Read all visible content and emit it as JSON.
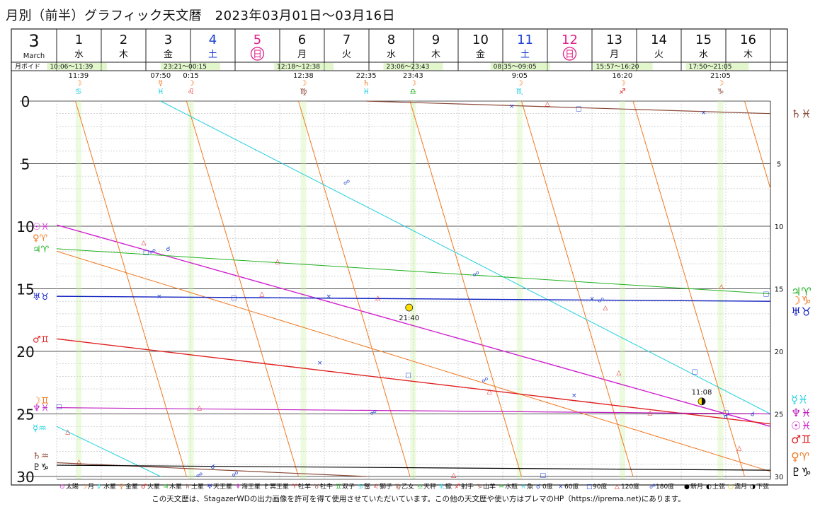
{
  "page_title": "月別（前半）グラフィック天文暦　2023年03月01日〜03月16日",
  "footer_note": "この天文歴は、StagazerWDの出力画像を許可を得て使用させていただいています。この他の天文歴や使い方はプレマのHP（https://iprema.net)にあります。",
  "colors": {
    "sun": "#d020d0",
    "moon": "#f07820",
    "mercury": "#20d0e0",
    "venus": "#f07820",
    "mars": "#e02020",
    "jupiter": "#20b020",
    "saturn": "#8b4a3a",
    "uranus": "#1020c0",
    "neptune": "#c020c0",
    "pluto": "#000000",
    "aspect": "#1a3fd0",
    "grid": "#999999",
    "void_fill": "#c8f0a0",
    "holiday": "#e0208a",
    "sat_blue": "#1a3fd0"
  },
  "header": {
    "month_number": "3",
    "month_name": "March",
    "days": [
      {
        "day": "1",
        "weekday": "水",
        "holiday": false,
        "saturday": false
      },
      {
        "day": "2",
        "weekday": "木",
        "holiday": false,
        "saturday": false
      },
      {
        "day": "3",
        "weekday": "金",
        "holiday": false,
        "saturday": false
      },
      {
        "day": "4",
        "weekday": "土",
        "holiday": false,
        "saturday": true
      },
      {
        "day": "5",
        "weekday": "日",
        "holiday": true,
        "saturday": false
      },
      {
        "day": "6",
        "weekday": "月",
        "holiday": false,
        "saturday": false
      },
      {
        "day": "7",
        "weekday": "火",
        "holiday": false,
        "saturday": false
      },
      {
        "day": "8",
        "weekday": "水",
        "holiday": false,
        "saturday": false
      },
      {
        "day": "9",
        "weekday": "木",
        "holiday": false,
        "saturday": false
      },
      {
        "day": "10",
        "weekday": "金",
        "holiday": false,
        "saturday": false
      },
      {
        "day": "11",
        "weekday": "土",
        "holiday": false,
        "saturday": true
      },
      {
        "day": "12",
        "weekday": "日",
        "holiday": true,
        "saturday": false
      },
      {
        "day": "13",
        "weekday": "月",
        "holiday": false,
        "saturday": false
      },
      {
        "day": "14",
        "weekday": "火",
        "holiday": false,
        "saturday": false
      },
      {
        "day": "15",
        "weekday": "水",
        "holiday": false,
        "saturday": false
      },
      {
        "day": "16",
        "weekday": "木",
        "holiday": false,
        "saturday": false
      }
    ],
    "void_label": "月ボイド",
    "void_periods": [
      {
        "text": "10:06〜11:39",
        "start_day": 1.42,
        "end_day": 1.49
      },
      {
        "text": "23:21〜00:15",
        "start_day": 3.97,
        "end_day": 4.01
      },
      {
        "text": "12:18〜12:38",
        "start_day": 6.51,
        "end_day": 6.53
      },
      {
        "text": "23:06〜23:43",
        "start_day": 8.96,
        "end_day": 8.99
      },
      {
        "text": "08:35〜09:05",
        "start_day": 11.36,
        "end_day": 11.38
      },
      {
        "text": "15:57〜16:20",
        "start_day": 13.66,
        "end_day": 13.68
      },
      {
        "text": "17:50〜21:05",
        "start_day": 15.74,
        "end_day": 15.88
      }
    ]
  },
  "ingresses": [
    {
      "time": "11:39",
      "planet": "☽",
      "sign": "♋",
      "day_pos": 1.49,
      "color": "#20d0e0"
    },
    {
      "time": "07:50",
      "planet": "☿",
      "sign": "♓",
      "day_pos": 3.33,
      "color": "#20d0e0"
    },
    {
      "time": "0:15",
      "planet": "☽",
      "sign": "♌",
      "day_pos": 4.01,
      "color": "#e02020"
    },
    {
      "time": "12:38",
      "planet": "☽",
      "sign": "♍",
      "day_pos": 6.53,
      "color": "#8b4a3a"
    },
    {
      "time": "22:35",
      "planet": "♄",
      "sign": "♓",
      "day_pos": 7.94,
      "color": "#20d0e0"
    },
    {
      "time": "23:43",
      "planet": "☽",
      "sign": "♎",
      "day_pos": 8.99,
      "color": "#20b020"
    },
    {
      "time": "9:05",
      "planet": "☽",
      "sign": "♏",
      "day_pos": 11.38,
      "color": "#20d0e0"
    },
    {
      "time": "16:20",
      "planet": "☽",
      "sign": "♐",
      "day_pos": 13.68,
      "color": "#e02020"
    },
    {
      "time": "21:05",
      "planet": "☽",
      "sign": "♑",
      "day_pos": 15.88,
      "color": "#8b4a3a"
    }
  ],
  "chart_data": {
    "type": "line",
    "title": "",
    "xlabel": "",
    "ylabel": "",
    "x_range_days": [
      1,
      17
    ],
    "ylim": [
      0,
      30
    ],
    "y_ticks_left": [
      0,
      5,
      10,
      15,
      20,
      25,
      30
    ],
    "y_ticks_right": [
      5,
      10,
      15,
      20,
      25,
      30
    ],
    "grid": true,
    "series": [
      {
        "name": "☉",
        "color": "#d020d0",
        "width": 1.4,
        "segments": [
          [
            [
              1,
              9.9
            ],
            [
              17,
              26.0
            ]
          ]
        ]
      },
      {
        "name": "☽",
        "color": "#f07820",
        "width": 1.0,
        "segments": [
          [
            [
              1.42,
              0
            ],
            [
              3.91,
              30
            ]
          ],
          [
            [
              3.91,
              0
            ],
            [
              6.42,
              30
            ]
          ],
          [
            [
              6.42,
              0
            ],
            [
              8.92,
              30
            ]
          ],
          [
            [
              8.92,
              0
            ],
            [
              11.42,
              30
            ]
          ],
          [
            [
              11.42,
              0
            ],
            [
              13.92,
              30
            ]
          ],
          [
            [
              13.92,
              0
            ],
            [
              16.42,
              30
            ]
          ],
          [
            [
              16.42,
              0
            ],
            [
              17,
              7
            ]
          ]
        ]
      },
      {
        "name": "☿",
        "color": "#20d0e0",
        "width": 1.0,
        "segments": [
          [
            [
              1,
              26.0
            ],
            [
              3.33,
              30
            ]
          ],
          [
            [
              3.33,
              0
            ],
            [
              17,
              25.0
            ]
          ]
        ]
      },
      {
        "name": "♀",
        "color": "#f07820",
        "width": 1.0,
        "segments": [
          [
            [
              1,
              12.0
            ],
            [
              17,
              29.6
            ]
          ]
        ]
      },
      {
        "name": "♂",
        "color": "#e02020",
        "width": 1.4,
        "segments": [
          [
            [
              1,
              19.0
            ],
            [
              17,
              25.8
            ]
          ]
        ]
      },
      {
        "name": "♃",
        "color": "#20b020",
        "width": 1.0,
        "segments": [
          [
            [
              1,
              11.8
            ],
            [
              17,
              15.4
            ]
          ]
        ]
      },
      {
        "name": "♄",
        "color": "#8b4a3a",
        "width": 1.2,
        "segments": [
          [
            [
              1,
              28.9
            ],
            [
              7.94,
              30
            ]
          ],
          [
            [
              7.94,
              0
            ],
            [
              17,
              1.0
            ]
          ]
        ]
      },
      {
        "name": "♅",
        "color": "#1020c0",
        "width": 1.4,
        "segments": [
          [
            [
              1,
              15.6
            ],
            [
              17,
              16.0
            ]
          ]
        ]
      },
      {
        "name": "♆",
        "color": "#c020c0",
        "width": 1.2,
        "segments": [
          [
            [
              1,
              24.5
            ],
            [
              17,
              25.0
            ]
          ]
        ]
      },
      {
        "name": "♇",
        "color": "#000000",
        "width": 1.2,
        "segments": [
          [
            [
              1,
              29.1
            ],
            [
              17,
              29.5
            ]
          ]
        ]
      }
    ],
    "left_labels": [
      {
        "value": 10,
        "glyphs": "☉♓",
        "color": "#d020d0"
      },
      {
        "value": 10.9,
        "glyphs": "♀♈",
        "color": "#f07820"
      },
      {
        "value": 11.8,
        "glyphs": "♃♈",
        "color": "#20b020"
      },
      {
        "value": 15.6,
        "glyphs": "♅♉",
        "color": "#1020c0"
      },
      {
        "value": 19.0,
        "glyphs": "♂♊",
        "color": "#e02020"
      },
      {
        "value": 23.9,
        "glyphs": "☽♊",
        "color": "#f07820"
      },
      {
        "value": 24.5,
        "glyphs": "♆♓",
        "color": "#c020c0"
      },
      {
        "value": 26.1,
        "glyphs": "☿♒",
        "color": "#20d0e0"
      },
      {
        "value": 28.3,
        "glyphs": "♄♒",
        "color": "#8b4a3a"
      },
      {
        "value": 29.2,
        "glyphs": "♇♑",
        "color": "#000000"
      }
    ],
    "right_labels": [
      {
        "value": 1.0,
        "glyphs": "♄♓",
        "color": "#8b4a3a"
      },
      {
        "value": 15.2,
        "glyphs": "♃♈",
        "color": "#20b020"
      },
      {
        "value": 15.9,
        "glyphs": "☽♑",
        "color": "#f07820"
      },
      {
        "value": 16.8,
        "glyphs": "♅♉",
        "color": "#1020c0"
      },
      {
        "value": 23.8,
        "glyphs": "☿♓",
        "color": "#20d0e0"
      },
      {
        "value": 24.9,
        "glyphs": "♆♓",
        "color": "#c020c0"
      },
      {
        "value": 25.9,
        "glyphs": "☉♓",
        "color": "#d020d0"
      },
      {
        "value": 27.0,
        "glyphs": "♂♊",
        "color": "#e02020"
      },
      {
        "value": 28.4,
        "glyphs": "♀♈",
        "color": "#f07820"
      },
      {
        "value": 29.6,
        "glyphs": "♇♑",
        "color": "#000000"
      }
    ],
    "aspects": [
      {
        "sym": "□",
        "day": 4.97,
        "value": 15.7
      },
      {
        "sym": "□",
        "day": 8.88,
        "value": 21.9
      },
      {
        "sym": "□",
        "day": 3.0,
        "value": 12.1
      },
      {
        "sym": "□",
        "day": 12.7,
        "value": 0.6
      },
      {
        "sym": "□",
        "day": 11.9,
        "value": 29.9
      },
      {
        "sym": "□",
        "day": 1.05,
        "value": 24.4
      },
      {
        "sym": "□",
        "day": 15.3,
        "value": 21.6
      },
      {
        "sym": "□",
        "day": 16.0,
        "value": 24.9
      },
      {
        "sym": "□",
        "day": 16.9,
        "value": 15.4
      },
      {
        "sym": "×",
        "day": 11.2,
        "value": 0.4
      },
      {
        "sym": "×",
        "day": 15.5,
        "value": 0.9
      },
      {
        "sym": "×",
        "day": 3.3,
        "value": 15.6
      },
      {
        "sym": "×",
        "day": 7.1,
        "value": 15.6
      },
      {
        "sym": "×",
        "day": 6.9,
        "value": 20.9
      },
      {
        "sym": "×",
        "day": 13.0,
        "value": 15.8
      },
      {
        "sym": "×",
        "day": 12.6,
        "value": 23.5
      },
      {
        "sym": "△",
        "day": 2.95,
        "value": 11.3
      },
      {
        "sym": "△",
        "day": 4.2,
        "value": 24.5
      },
      {
        "sym": "△",
        "day": 5.95,
        "value": 12.8
      },
      {
        "sym": "△",
        "day": 5.6,
        "value": 15.4
      },
      {
        "sym": "△",
        "day": 8.2,
        "value": 15.7
      },
      {
        "sym": "△",
        "day": 10.7,
        "value": 23.2
      },
      {
        "sym": "△",
        "day": 13.3,
        "value": 16.5
      },
      {
        "sym": "△",
        "day": 13.6,
        "value": 21.7
      },
      {
        "sym": "△",
        "day": 14.3,
        "value": 24.9
      },
      {
        "sym": "△",
        "day": 15.9,
        "value": 14.8
      },
      {
        "sym": "△",
        "day": 16.3,
        "value": 27.7
      },
      {
        "sym": "△",
        "day": 12.0,
        "value": 0.2
      },
      {
        "sym": "△",
        "day": 9.9,
        "value": 29.9
      },
      {
        "sym": "△",
        "day": 1.25,
        "value": 26.4
      },
      {
        "sym": "△",
        "day": 1.5,
        "value": 28.8
      },
      {
        "sym": "☍",
        "day": 3.15,
        "value": 12.0
      },
      {
        "sym": "☍",
        "day": 7.5,
        "value": 6.5
      },
      {
        "sym": "☍",
        "day": 5.0,
        "value": 29.8
      },
      {
        "sym": "☍",
        "day": 8.1,
        "value": 24.9
      },
      {
        "sym": "☍",
        "day": 10.6,
        "value": 22.3
      },
      {
        "sym": "☍",
        "day": 10.4,
        "value": 13.8
      },
      {
        "sym": "☍",
        "day": 13.2,
        "value": 15.9
      },
      {
        "sym": "☍",
        "day": 4.2,
        "value": 29.9
      },
      {
        "sym": "☌",
        "day": 4.5,
        "value": 29.2
      },
      {
        "sym": "☌",
        "day": 16.6,
        "value": 25.0
      },
      {
        "sym": "☌",
        "day": 3.5,
        "value": 11.8
      },
      {
        "sym": "☌",
        "day": 16.0,
        "value": 25.2
      }
    ],
    "moon_phases": [
      {
        "type": "full",
        "day": 8.9,
        "value": 16.5,
        "time": "21:40"
      },
      {
        "type": "last_quarter",
        "day": 15.46,
        "value": 24.0,
        "time": "11:08"
      }
    ]
  },
  "legend": [
    {
      "sym": "⊙",
      "label": "太陽",
      "color": "#d020d0"
    },
    {
      "sym": "☽",
      "label": "月",
      "color": "#f07820"
    },
    {
      "sym": "☿",
      "label": "水星",
      "color": "#20d0e0"
    },
    {
      "sym": "♀",
      "label": "金星",
      "color": "#f07820"
    },
    {
      "sym": "♂",
      "label": "火星",
      "color": "#e02020"
    },
    {
      "sym": "♃",
      "label": "木星",
      "color": "#20b020"
    },
    {
      "sym": "♄",
      "label": "土星",
      "color": "#8b4a3a"
    },
    {
      "sym": "♅",
      "label": "天王星",
      "color": "#1020c0"
    },
    {
      "sym": "♆",
      "label": "海王星",
      "color": "#c020c0"
    },
    {
      "sym": "♇",
      "label": "冥王星",
      "color": "#000000"
    },
    {
      "sym": "♈",
      "label": "牡羊",
      "color": "#e02020"
    },
    {
      "sym": "♉",
      "label": "牡牛",
      "color": "#8b4a3a"
    },
    {
      "sym": "♊",
      "label": "双子",
      "color": "#20b020"
    },
    {
      "sym": "♋",
      "label": "蟹",
      "color": "#20d0e0"
    },
    {
      "sym": "♌",
      "label": "獅子",
      "color": "#e02020"
    },
    {
      "sym": "♍",
      "label": "乙女",
      "color": "#8b4a3a"
    },
    {
      "sym": "♎",
      "label": "天秤",
      "color": "#20b020"
    },
    {
      "sym": "♏",
      "label": "蠍",
      "color": "#20d0e0"
    },
    {
      "sym": "♐",
      "label": "射手",
      "color": "#e02020"
    },
    {
      "sym": "♑",
      "label": "山羊",
      "color": "#8b4a3a"
    },
    {
      "sym": "♒",
      "label": "水瓶",
      "color": "#20b020"
    },
    {
      "sym": "♓",
      "label": "魚",
      "color": "#20d0e0"
    },
    {
      "sym": "☌",
      "label": "0度",
      "color": "#1a3fd0"
    },
    {
      "sym": "×",
      "label": "60度",
      "color": "#1a3fd0"
    },
    {
      "sym": "□",
      "label": "90度",
      "color": "#1a3fd0"
    },
    {
      "sym": "△",
      "label": "120度",
      "color": "#e02020"
    },
    {
      "sym": "☍",
      "label": "180度",
      "color": "#1a3fd0"
    },
    {
      "sym": "●",
      "label": "新月",
      "color": "#000000"
    },
    {
      "sym": "◐",
      "label": "上弦",
      "color": "#000000"
    },
    {
      "sym": "○",
      "label": "満月",
      "color": "#e0c000"
    },
    {
      "sym": "◑",
      "label": "下弦",
      "color": "#000000"
    }
  ]
}
